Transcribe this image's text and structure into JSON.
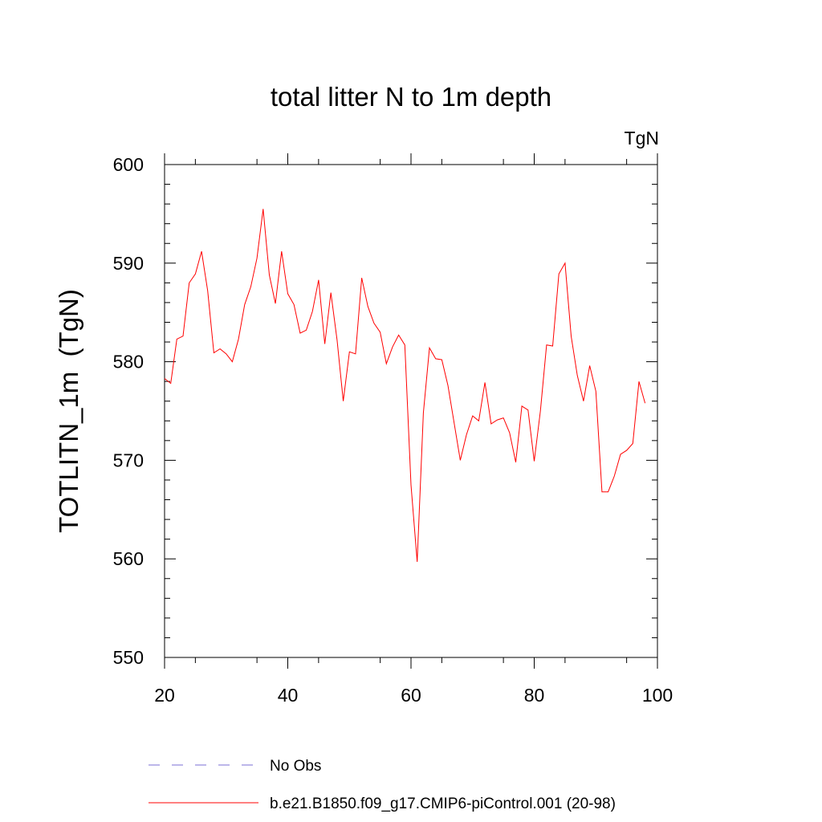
{
  "chart_data": {
    "type": "line",
    "title": "total litter N to 1m depth",
    "units_label": "TgN",
    "ylabel": "TOTLITN_1m  (TgN)",
    "xlabel": "",
    "xlim": [
      20,
      100
    ],
    "ylim": [
      550,
      600
    ],
    "xticks": [
      20,
      40,
      60,
      80,
      100
    ],
    "yticks": [
      550,
      560,
      570,
      580,
      590,
      600
    ],
    "legend": "bottom",
    "series": [
      {
        "name": "No Obs",
        "color": "#7a6fd6",
        "style": "dashed",
        "x": [],
        "values": []
      },
      {
        "name": "b.e21.B1850.f09_g17.CMIP6-piControl.001 (20-98)",
        "color": "#ff0000",
        "style": "solid",
        "x": [
          20,
          21,
          22,
          23,
          24,
          25,
          26,
          27,
          28,
          29,
          30,
          31,
          32,
          33,
          34,
          35,
          36,
          37,
          38,
          39,
          40,
          41,
          42,
          43,
          44,
          45,
          46,
          47,
          48,
          49,
          50,
          51,
          52,
          53,
          54,
          55,
          56,
          57,
          58,
          59,
          60,
          61,
          62,
          63,
          64,
          65,
          66,
          67,
          68,
          69,
          70,
          71,
          72,
          73,
          74,
          75,
          76,
          77,
          78,
          79,
          80,
          81,
          82,
          83,
          84,
          85,
          86,
          87,
          88,
          89,
          90,
          91,
          92,
          93,
          94,
          95,
          96,
          97,
          98
        ],
        "values": [
          578.3,
          577.8,
          582.3,
          582.6,
          588.0,
          588.9,
          591.2,
          587.2,
          580.9,
          581.3,
          580.8,
          580.0,
          582.3,
          585.8,
          587.6,
          590.5,
          595.5,
          588.8,
          585.9,
          591.2,
          586.9,
          585.8,
          582.9,
          583.2,
          585.1,
          588.3,
          581.8,
          587.0,
          582.2,
          576.0,
          581.0,
          580.8,
          588.5,
          585.6,
          583.9,
          583.0,
          579.8,
          581.5,
          582.7,
          581.7,
          567.5,
          559.7,
          574.8,
          581.4,
          580.3,
          580.2,
          577.6,
          573.8,
          570.0,
          572.6,
          574.5,
          574.0,
          577.9,
          573.7,
          574.1,
          574.3,
          572.8,
          569.8,
          575.5,
          575.1,
          569.9,
          575.0,
          581.7,
          581.6,
          588.9,
          590.0,
          582.6,
          578.6,
          576.0,
          579.6,
          577.0,
          566.8,
          566.8,
          568.4,
          570.6,
          571.0,
          571.7,
          578.0,
          575.8
        ]
      }
    ]
  }
}
